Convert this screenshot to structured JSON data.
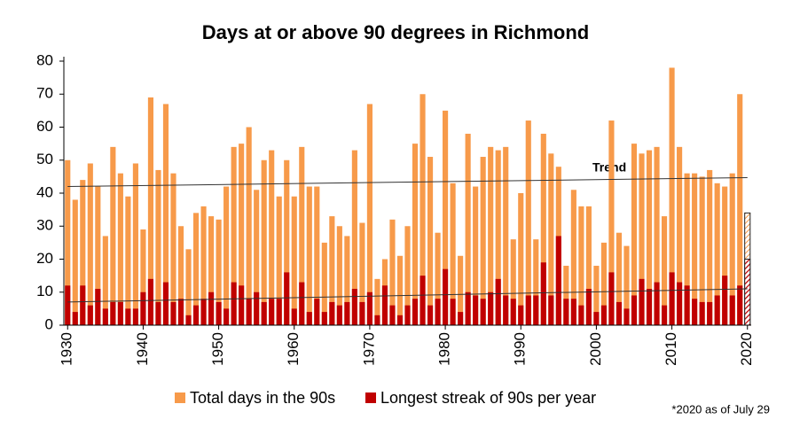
{
  "chart_data": {
    "type": "bar",
    "title": "Days at or above 90 degrees in Richmond",
    "x": [
      1930,
      1931,
      1932,
      1933,
      1934,
      1935,
      1936,
      1937,
      1938,
      1939,
      1940,
      1941,
      1942,
      1943,
      1944,
      1945,
      1946,
      1947,
      1948,
      1949,
      1950,
      1951,
      1952,
      1953,
      1954,
      1955,
      1956,
      1957,
      1958,
      1959,
      1960,
      1961,
      1962,
      1963,
      1964,
      1965,
      1966,
      1967,
      1968,
      1969,
      1970,
      1971,
      1972,
      1973,
      1974,
      1975,
      1976,
      1977,
      1978,
      1979,
      1980,
      1981,
      1982,
      1983,
      1984,
      1985,
      1986,
      1987,
      1988,
      1989,
      1990,
      1991,
      1992,
      1993,
      1994,
      1995,
      1996,
      1997,
      1998,
      1999,
      2000,
      2001,
      2002,
      2003,
      2004,
      2005,
      2006,
      2007,
      2008,
      2009,
      2010,
      2011,
      2012,
      2013,
      2014,
      2015,
      2016,
      2017,
      2018,
      2019,
      2020
    ],
    "series": [
      {
        "name": "Total days in the 90s",
        "color": "#f79a4a",
        "values": [
          50,
          38,
          44,
          49,
          42,
          27,
          54,
          46,
          39,
          49,
          29,
          69,
          47,
          67,
          46,
          30,
          23,
          34,
          36,
          33,
          32,
          42,
          54,
          55,
          60,
          41,
          50,
          53,
          39,
          50,
          39,
          54,
          42,
          42,
          25,
          33,
          30,
          27,
          53,
          31,
          67,
          14,
          20,
          32,
          21,
          30,
          55,
          70,
          51,
          28,
          65,
          43,
          21,
          58,
          42,
          51,
          54,
          53,
          54,
          26,
          40,
          62,
          26,
          58,
          52,
          48,
          18,
          41,
          36,
          36,
          18,
          25,
          62,
          28,
          24,
          55,
          52,
          53,
          54,
          33,
          78,
          54,
          46,
          46,
          45,
          47,
          43,
          42,
          46,
          70,
          34
        ]
      },
      {
        "name": "Longest streak of 90s per year",
        "color": "#c00000",
        "values": [
          12,
          4,
          12,
          6,
          11,
          5,
          7,
          7,
          5,
          5,
          10,
          14,
          7,
          13,
          7,
          8,
          3,
          6,
          8,
          10,
          7,
          5,
          13,
          12,
          8,
          10,
          7,
          8,
          8,
          16,
          5,
          13,
          4,
          8,
          4,
          7,
          6,
          7,
          11,
          7,
          10,
          3,
          12,
          6,
          3,
          6,
          8,
          15,
          6,
          8,
          17,
          8,
          4,
          10,
          9,
          8,
          10,
          14,
          9,
          8,
          6,
          9,
          9,
          19,
          9,
          27,
          8,
          8,
          6,
          11,
          4,
          6,
          16,
          7,
          5,
          9,
          14,
          11,
          13,
          6,
          16,
          13,
          12,
          8,
          7,
          7,
          9,
          15,
          9,
          12,
          20
        ]
      }
    ],
    "hatched": [
      2020
    ],
    "trend_label": "Trend",
    "trends": [
      {
        "series": 0,
        "start": 42,
        "end": 44.7
      },
      {
        "series": 1,
        "start": 7,
        "end": 11
      }
    ],
    "xlim": [
      1929.5,
      2020.5
    ],
    "xticks": [
      1930,
      1940,
      1950,
      1960,
      1970,
      1980,
      1990,
      2000,
      2010,
      2020
    ],
    "ylim": [
      0,
      80
    ],
    "yticks": [
      0,
      10,
      20,
      30,
      40,
      50,
      60,
      70,
      80
    ],
    "footnote": "*2020 as of July 29"
  }
}
